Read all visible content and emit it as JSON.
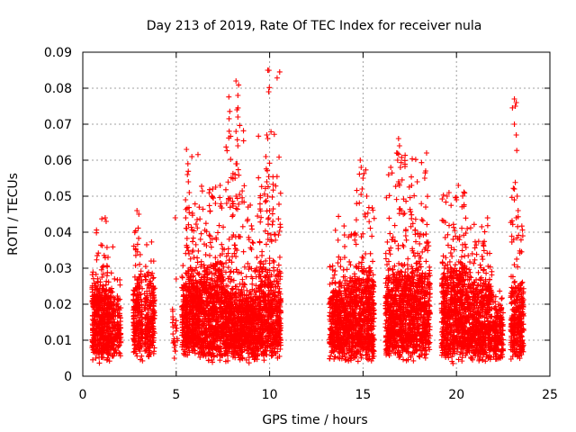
{
  "chart_data": {
    "type": "scatter",
    "title": "Day 213 of 2019, Rate Of TEC Index for receiver nula",
    "xlabel": "GPS time / hours",
    "ylabel": "ROTI / TECUs",
    "xlim": [
      0,
      25
    ],
    "ylim": [
      0,
      0.09
    ],
    "x_ticks": [
      "0",
      "5",
      "10",
      "15",
      "20",
      "25"
    ],
    "y_ticks": [
      "0",
      "0.01",
      "0.02",
      "0.03",
      "0.04",
      "0.05",
      "0.06",
      "0.07",
      "0.08",
      "0.09"
    ],
    "grid": true,
    "marker": "+",
    "color": "#ff0000",
    "clusters": [
      {
        "x_start": 0.5,
        "x_end": 1.6,
        "y_min": 0.002,
        "y_core": 0.025,
        "y_max": 0.044,
        "density": 520
      },
      {
        "x_start": 1.6,
        "x_end": 2.05,
        "y_min": 0.002,
        "y_core": 0.02,
        "y_max": 0.037,
        "density": 120
      },
      {
        "x_start": 2.7,
        "x_end": 3.2,
        "y_min": 0.002,
        "y_core": 0.028,
        "y_max": 0.046,
        "density": 200
      },
      {
        "x_start": 3.3,
        "x_end": 3.85,
        "y_min": 0.003,
        "y_core": 0.026,
        "y_max": 0.038,
        "density": 200
      },
      {
        "x_start": 4.8,
        "x_end": 5.1,
        "y_min": 0.003,
        "y_core": 0.012,
        "y_max": 0.044,
        "density": 20
      },
      {
        "x_start": 5.3,
        "x_end": 6.3,
        "y_min": 0.003,
        "y_core": 0.028,
        "y_max": 0.063,
        "density": 520
      },
      {
        "x_start": 6.3,
        "x_end": 7.55,
        "y_min": 0.002,
        "y_core": 0.03,
        "y_max": 0.053,
        "density": 620
      },
      {
        "x_start": 7.55,
        "x_end": 8.65,
        "y_min": 0.002,
        "y_core": 0.025,
        "y_max": 0.082,
        "density": 560
      },
      {
        "x_start": 8.65,
        "x_end": 9.4,
        "y_min": 0.002,
        "y_core": 0.022,
        "y_max": 0.05,
        "density": 360
      },
      {
        "x_start": 9.4,
        "x_end": 10.6,
        "y_min": 0.002,
        "y_core": 0.03,
        "y_max": 0.085,
        "density": 560
      },
      {
        "x_start": 13.2,
        "x_end": 14.3,
        "y_min": 0.002,
        "y_core": 0.025,
        "y_max": 0.045,
        "density": 520
      },
      {
        "x_start": 14.3,
        "x_end": 15.6,
        "y_min": 0.002,
        "y_core": 0.03,
        "y_max": 0.06,
        "density": 620
      },
      {
        "x_start": 16.2,
        "x_end": 17.3,
        "y_min": 0.003,
        "y_core": 0.03,
        "y_max": 0.066,
        "density": 560
      },
      {
        "x_start": 17.3,
        "x_end": 18.6,
        "y_min": 0.002,
        "y_core": 0.03,
        "y_max": 0.062,
        "density": 600
      },
      {
        "x_start": 19.2,
        "x_end": 20.5,
        "y_min": 0.002,
        "y_core": 0.032,
        "y_max": 0.053,
        "density": 640
      },
      {
        "x_start": 20.5,
        "x_end": 21.9,
        "y_min": 0.002,
        "y_core": 0.028,
        "y_max": 0.045,
        "density": 600
      },
      {
        "x_start": 21.9,
        "x_end": 22.5,
        "y_min": 0.002,
        "y_core": 0.018,
        "y_max": 0.026,
        "density": 180
      },
      {
        "x_start": 22.9,
        "x_end": 23.6,
        "y_min": 0.002,
        "y_core": 0.025,
        "y_max": 0.077,
        "density": 300
      }
    ],
    "outliers": [
      [
        8.2,
        0.082
      ],
      [
        8.3,
        0.078
      ],
      [
        8.25,
        0.074
      ],
      [
        8.3,
        0.072
      ],
      [
        8.2,
        0.068
      ],
      [
        8.3,
        0.064
      ],
      [
        8.25,
        0.059
      ],
      [
        8.2,
        0.059
      ],
      [
        8.15,
        0.055
      ],
      [
        7.8,
        0.049
      ],
      [
        7.7,
        0.048
      ],
      [
        8.2,
        0.05
      ],
      [
        9.9,
        0.085
      ],
      [
        9.95,
        0.079
      ],
      [
        9.85,
        0.067
      ],
      [
        9.9,
        0.066
      ],
      [
        9.8,
        0.061
      ],
      [
        9.85,
        0.054
      ],
      [
        9.9,
        0.05
      ],
      [
        10.0,
        0.046
      ],
      [
        9.95,
        0.044
      ],
      [
        5.55,
        0.063
      ],
      [
        5.6,
        0.056
      ],
      [
        5.65,
        0.054
      ],
      [
        5.7,
        0.051
      ],
      [
        5.5,
        0.049
      ],
      [
        23.1,
        0.077
      ],
      [
        23.2,
        0.076
      ],
      [
        23.15,
        0.075
      ],
      [
        23.1,
        0.07
      ],
      [
        23.2,
        0.067
      ],
      [
        23.1,
        0.052
      ],
      [
        23.25,
        0.05
      ],
      [
        23.3,
        0.046
      ],
      [
        23.2,
        0.044
      ],
      [
        16.9,
        0.066
      ],
      [
        16.95,
        0.064
      ],
      [
        16.8,
        0.062
      ],
      [
        16.85,
        0.06
      ],
      [
        17.0,
        0.058
      ],
      [
        16.9,
        0.054
      ],
      [
        16.95,
        0.053
      ],
      [
        18.4,
        0.062
      ],
      [
        18.35,
        0.057
      ],
      [
        18.3,
        0.055
      ],
      [
        17.9,
        0.054
      ],
      [
        17.6,
        0.053
      ],
      [
        14.85,
        0.06
      ],
      [
        14.9,
        0.058
      ],
      [
        15.0,
        0.055
      ],
      [
        14.95,
        0.052
      ],
      [
        15.2,
        0.05
      ],
      [
        20.1,
        0.053
      ],
      [
        19.6,
        0.051
      ],
      [
        19.5,
        0.05
      ],
      [
        20.0,
        0.049
      ],
      [
        1.2,
        0.044
      ],
      [
        1.25,
        0.043
      ],
      [
        2.9,
        0.046
      ],
      [
        3.0,
        0.045
      ],
      [
        7.35,
        0.053
      ],
      [
        6.9,
        0.05
      ],
      [
        6.95,
        0.052
      ],
      [
        7.1,
        0.048
      ],
      [
        4.9,
        0.008
      ],
      [
        4.95,
        0.007
      ],
      [
        4.9,
        0.005
      ],
      [
        5.0,
        0.027
      ],
      [
        4.95,
        0.044
      ]
    ]
  }
}
